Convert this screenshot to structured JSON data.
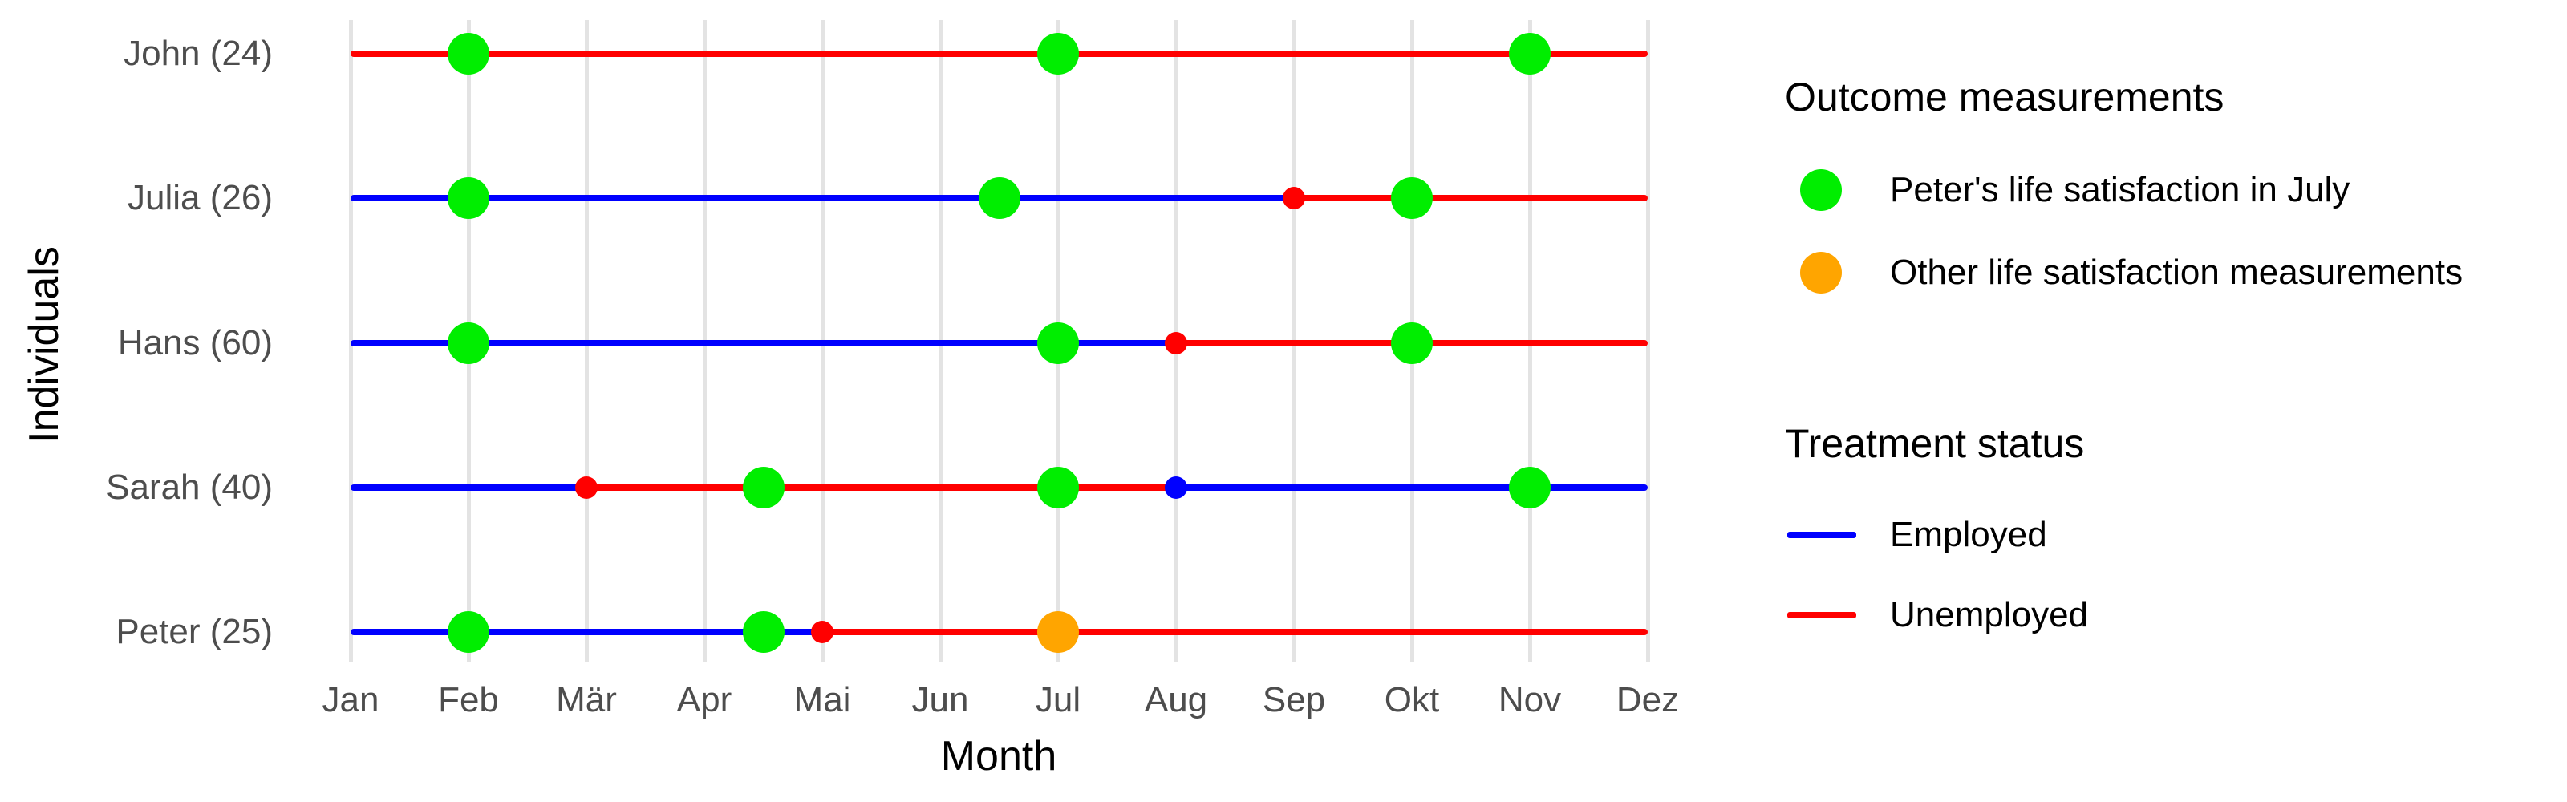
{
  "figure": {
    "background": "#FFFFFF",
    "axes": {
      "x_title": "Month",
      "y_title": "Individuals",
      "tick_color": "#4D4D4D",
      "title_color": "#000000",
      "gridline_color": "#E3E3E3"
    }
  },
  "chart_data": {
    "type": "line",
    "subtype": "individual-timelines-with-outcome-markers",
    "x": {
      "label": "Month",
      "categories": [
        "Jan",
        "Feb",
        "Mär",
        "Apr",
        "Mai",
        "Jun",
        "Jul",
        "Aug",
        "Sep",
        "Okt",
        "Nov",
        "Dez"
      ],
      "range_months": [
        1,
        12
      ],
      "grid": "vertical-only"
    },
    "y": {
      "label": "Individuals",
      "categories_top_to_bottom": [
        "John (24)",
        "Julia (26)",
        "Hans (60)",
        "Sarah (40)",
        "Peter (25)"
      ]
    },
    "colors": {
      "employed": "#0000FF",
      "unemployed": "#FF0000",
      "peter_july": "#00EE00",
      "other": "#FFA500"
    },
    "individuals": [
      {
        "label": "John (24)",
        "segments": [
          {
            "from_month": 1,
            "to_month": 12,
            "status": "Unemployed"
          }
        ],
        "status_change_dots": [],
        "outcome_dots": [
          {
            "month": 2,
            "type": "peter_july"
          },
          {
            "month": 7,
            "type": "peter_july"
          },
          {
            "month": 11,
            "type": "peter_july"
          }
        ]
      },
      {
        "label": "Julia (26)",
        "segments": [
          {
            "from_month": 1,
            "to_month": 9,
            "status": "Employed"
          },
          {
            "from_month": 9,
            "to_month": 12,
            "status": "Unemployed"
          }
        ],
        "status_change_dots": [
          {
            "month": 9,
            "status": "Unemployed"
          }
        ],
        "outcome_dots": [
          {
            "month": 2,
            "type": "peter_july"
          },
          {
            "month": 6.5,
            "type": "peter_july"
          },
          {
            "month": 10,
            "type": "peter_july"
          }
        ]
      },
      {
        "label": "Hans (60)",
        "segments": [
          {
            "from_month": 1,
            "to_month": 8,
            "status": "Employed"
          },
          {
            "from_month": 8,
            "to_month": 12,
            "status": "Unemployed"
          }
        ],
        "status_change_dots": [
          {
            "month": 8,
            "status": "Unemployed"
          }
        ],
        "outcome_dots": [
          {
            "month": 2,
            "type": "peter_july"
          },
          {
            "month": 7,
            "type": "peter_july"
          },
          {
            "month": 10,
            "type": "peter_july"
          }
        ]
      },
      {
        "label": "Sarah (40)",
        "segments": [
          {
            "from_month": 1,
            "to_month": 3,
            "status": "Employed"
          },
          {
            "from_month": 3,
            "to_month": 8,
            "status": "Unemployed"
          },
          {
            "from_month": 8,
            "to_month": 12,
            "status": "Employed"
          }
        ],
        "status_change_dots": [
          {
            "month": 3,
            "status": "Unemployed"
          },
          {
            "month": 8,
            "status": "Employed"
          }
        ],
        "outcome_dots": [
          {
            "month": 4.5,
            "type": "peter_july"
          },
          {
            "month": 7,
            "type": "peter_july"
          },
          {
            "month": 11,
            "type": "peter_july"
          }
        ]
      },
      {
        "label": "Peter (25)",
        "segments": [
          {
            "from_month": 1,
            "to_month": 5,
            "status": "Employed"
          },
          {
            "from_month": 5,
            "to_month": 12,
            "status": "Unemployed"
          }
        ],
        "status_change_dots": [
          {
            "month": 5,
            "status": "Unemployed"
          }
        ],
        "outcome_dots": [
          {
            "month": 2,
            "type": "peter_july"
          },
          {
            "month": 4.5,
            "type": "peter_july"
          },
          {
            "month": 7,
            "type": "other"
          }
        ]
      }
    ]
  },
  "legend": {
    "outcome": {
      "title": "Outcome measurements",
      "items": [
        {
          "label": "Peter's life satisfaction in July",
          "color": "#00EE00",
          "marker": "dot"
        },
        {
          "label": "Other life satisfaction measurements",
          "color": "#FFA500",
          "marker": "dot"
        }
      ]
    },
    "treatment": {
      "title": "Treatment status",
      "items": [
        {
          "label": "Employed",
          "color": "#0000FF",
          "marker": "line"
        },
        {
          "label": "Unemployed",
          "color": "#FF0000",
          "marker": "line"
        }
      ]
    }
  }
}
